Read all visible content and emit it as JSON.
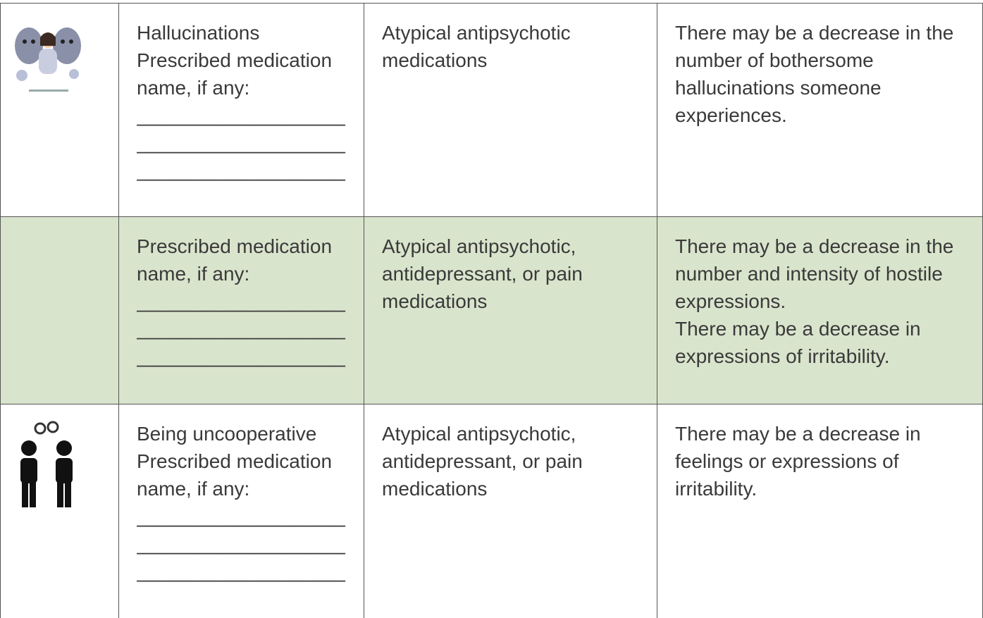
{
  "table": {
    "rows": [
      {
        "condition": "Hallucinations",
        "prompt": "Prescribed medication name, if any:",
        "blanks": [
          "___________________",
          "___________________",
          "___________________"
        ],
        "medications": "Atypical antipsychotic medications",
        "effects": [
          "There may be a decrease in the number of bothersome hallucinations someone experiences."
        ]
      },
      {
        "prompt": "Prescribed medication name, if any:",
        "blanks": [
          "___________________",
          "___________________",
          "___________________"
        ],
        "medications": "Atypical antipsychotic, antidepressant, or pain medications",
        "effects": [
          "There may be a decrease in the number and intensity of hostile expressions.",
          "There may be a decrease in expressions of irritability."
        ]
      },
      {
        "condition": "Being uncooperative",
        "prompt": "Prescribed medication name, if any:",
        "blanks": [
          "___________________",
          "___________________",
          "___________________"
        ],
        "medications": "Atypical antipsychotic, antidepressant, or pain medications",
        "effects": [
          "There may be a decrease in feelings or expressions of irritability."
        ]
      }
    ]
  }
}
